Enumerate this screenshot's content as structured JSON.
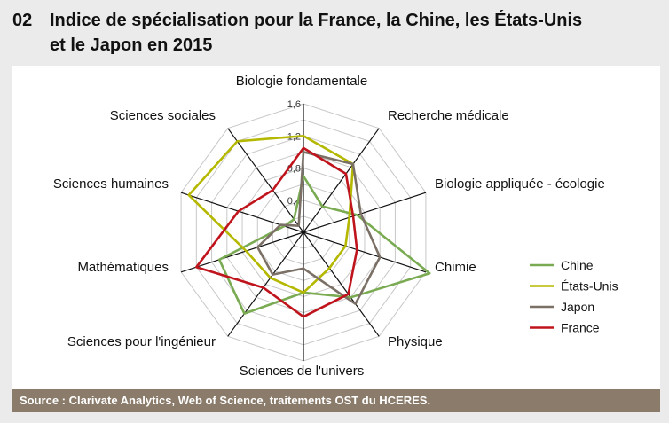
{
  "header": {
    "number": "02",
    "title_line1": "Indice de spécialisation pour la France, la Chine, les États-Unis",
    "title_line2": "et le Japon en 2015"
  },
  "source": "Source : Clarivate Analytics, Web of Science, traitements OST du HCERES.",
  "chart_data": {
    "type": "radar",
    "categories": [
      "Biologie fondamentale",
      "Recherche médicale",
      "Biologie appliquée - écologie",
      "Chimie",
      "Physique",
      "Sciences de l'univers",
      "Sciences pour l'ingénieur",
      "Mathématiques",
      "Sciences humaines",
      "Sciences sociales"
    ],
    "rlim": [
      0,
      1.6
    ],
    "ticks": [
      "0,4",
      "0,8",
      "1,2",
      "1,6"
    ],
    "tick_values": [
      0.4,
      0.8,
      1.2,
      1.6
    ],
    "grid": true,
    "legend_position": "right",
    "series": [
      {
        "name": "Chine",
        "color": "#7aab52",
        "values": [
          0.7,
          0.4,
          0.7,
          1.65,
          1.0,
          0.75,
          1.25,
          1.1,
          0.25,
          0.2
        ]
      },
      {
        "name": "États-Unis",
        "color": "#b5b800",
        "values": [
          1.2,
          1.05,
          0.6,
          0.55,
          0.55,
          0.75,
          0.7,
          0.75,
          1.5,
          1.4
        ]
      },
      {
        "name": "Japon",
        "color": "#7b7066",
        "values": [
          1.0,
          1.05,
          0.75,
          1.0,
          1.1,
          0.45,
          0.65,
          0.6,
          0.3,
          0.1
        ]
      },
      {
        "name": "France",
        "color": "#c0141c",
        "values": [
          1.05,
          0.9,
          0.65,
          0.7,
          0.95,
          1.05,
          0.85,
          1.4,
          0.85,
          0.65
        ]
      }
    ]
  }
}
